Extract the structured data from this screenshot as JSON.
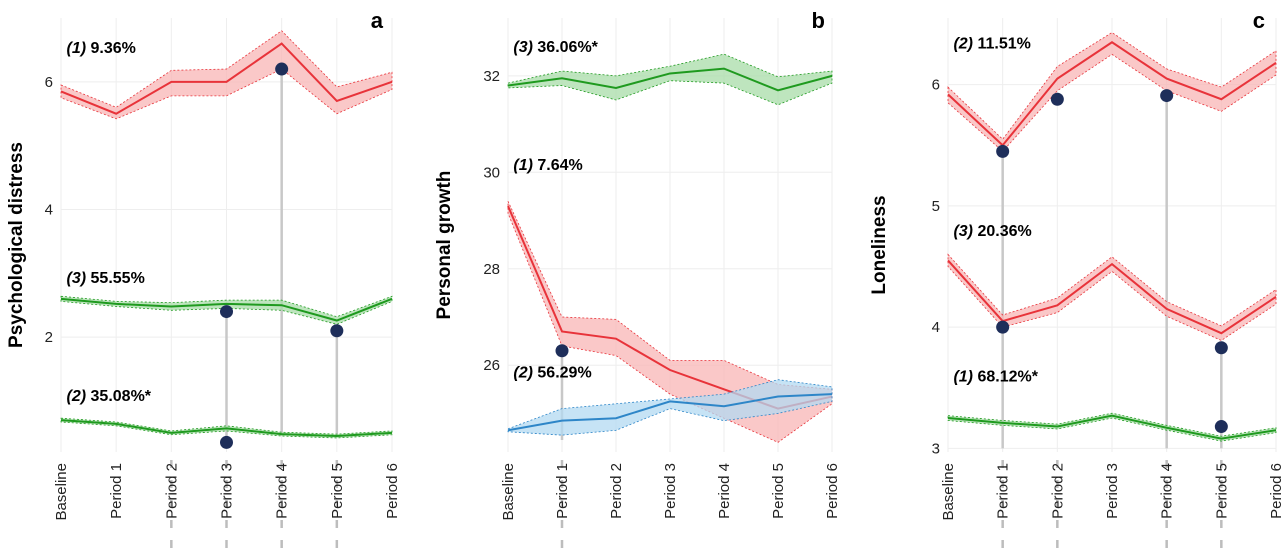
{
  "chart_data": [
    {
      "type": "line",
      "panel_letter": "a",
      "ylabel": "Psychological distress",
      "categories": [
        "Baseline",
        "Period 1",
        "Period 2",
        "Period 3",
        "Period 4",
        "Period 5",
        "Period 6"
      ],
      "ylim": [
        0.2,
        7.0
      ],
      "yticks": [
        2,
        4,
        6
      ],
      "grid": true,
      "series": [
        {
          "color": "#e8333a",
          "band": "#f8b5b5",
          "values": [
            5.85,
            5.5,
            6.0,
            6.0,
            6.6,
            5.7,
            6.0
          ],
          "lower": [
            5.75,
            5.42,
            5.78,
            5.78,
            6.2,
            5.5,
            5.88
          ],
          "upper": [
            5.95,
            5.6,
            6.18,
            6.2,
            6.8,
            5.92,
            6.15
          ]
        },
        {
          "color": "#1f9a1f",
          "band": "#a8dca8",
          "values": [
            2.6,
            2.52,
            2.48,
            2.52,
            2.5,
            2.26,
            2.6
          ],
          "lower": [
            2.56,
            2.48,
            2.42,
            2.45,
            2.42,
            2.2,
            2.56
          ],
          "upper": [
            2.64,
            2.56,
            2.54,
            2.58,
            2.58,
            2.32,
            2.64
          ]
        },
        {
          "color": "#1f9a1f",
          "band": "#a8dca8",
          "values": [
            0.7,
            0.64,
            0.5,
            0.57,
            0.48,
            0.45,
            0.5
          ],
          "lower": [
            0.67,
            0.61,
            0.47,
            0.53,
            0.45,
            0.42,
            0.47
          ],
          "upper": [
            0.73,
            0.67,
            0.53,
            0.61,
            0.51,
            0.48,
            0.53
          ]
        }
      ],
      "annotations": [
        {
          "num": "(1)",
          "text": " 9.36%",
          "x": 0.1,
          "y": 6.45
        },
        {
          "num": "(3)",
          "text": " 55.55%",
          "x": 0.1,
          "y": 2.85
        },
        {
          "num": "(2)",
          "text": " 35.08%*",
          "x": 0.1,
          "y": 1.0
        }
      ],
      "points": [
        {
          "x": 3,
          "y": 2.4
        },
        {
          "x": 3,
          "y": 0.35
        },
        {
          "x": 4,
          "y": 6.2
        },
        {
          "x": 5,
          "y": 2.1
        }
      ],
      "connectors": [
        {
          "x": 3,
          "y1": 0.35,
          "y2": 2.4
        },
        {
          "x": 4,
          "y1": 0.45,
          "y2": 6.2
        },
        {
          "x": 5,
          "y1": 0.45,
          "y2": 2.1
        }
      ],
      "dashed_below_axis": [
        2,
        3,
        4,
        5
      ]
    },
    {
      "type": "line",
      "panel_letter": "b",
      "ylabel": "Personal growth",
      "categories": [
        "Baseline",
        "Period 1",
        "Period 2",
        "Period 3",
        "Period 4",
        "Period 5",
        "Period 6"
      ],
      "ylim": [
        24.2,
        33.2
      ],
      "yticks": [
        26,
        28,
        30,
        32
      ],
      "grid": true,
      "series": [
        {
          "color": "#1f9a1f",
          "band": "#a8dca8",
          "values": [
            31.8,
            31.95,
            31.75,
            32.05,
            32.15,
            31.7,
            32.0
          ],
          "lower": [
            31.75,
            31.8,
            31.5,
            31.9,
            31.85,
            31.4,
            31.85
          ],
          "upper": [
            31.85,
            32.1,
            32.0,
            32.2,
            32.45,
            31.98,
            32.1
          ]
        },
        {
          "color": "#e8333a",
          "band": "#f8b5b5",
          "values": [
            29.3,
            26.7,
            26.55,
            25.9,
            25.5,
            25.1,
            25.35
          ],
          "lower": [
            29.15,
            26.4,
            26.2,
            25.4,
            24.9,
            24.4,
            25.2
          ],
          "upper": [
            29.4,
            27.0,
            26.95,
            26.1,
            26.1,
            25.6,
            25.5
          ]
        },
        {
          "color": "#2e86c8",
          "band": "#b3d9f2",
          "values": [
            24.65,
            24.85,
            24.9,
            25.25,
            25.15,
            25.35,
            25.4
          ],
          "lower": [
            24.62,
            24.55,
            24.65,
            25.1,
            24.85,
            25.0,
            25.25
          ],
          "upper": [
            24.68,
            25.1,
            25.2,
            25.3,
            25.4,
            25.7,
            25.55
          ]
        }
      ],
      "annotations": [
        {
          "num": "(3)",
          "text": " 36.06%*",
          "x": 0.1,
          "y": 32.5
        },
        {
          "num": "(1)",
          "text": " 7.64%",
          "x": 0.1,
          "y": 30.05
        },
        {
          "num": "(2)",
          "text": " 56.29%",
          "x": 0.1,
          "y": 25.75
        }
      ],
      "points": [
        {
          "x": 1,
          "y": 26.3
        }
      ],
      "connectors": [
        {
          "x": 1,
          "y1": 24.45,
          "y2": 26.3
        }
      ],
      "dashed_below_axis": [
        1
      ]
    },
    {
      "type": "line",
      "panel_letter": "c",
      "ylabel": "Loneliness",
      "categories": [
        "Baseline",
        "Period 1",
        "Period 2",
        "Period 3",
        "Period 4",
        "Period 5",
        "Period 6"
      ],
      "ylim": [
        2.97,
        6.55
      ],
      "yticks": [
        3,
        4,
        5,
        6
      ],
      "grid": true,
      "series": [
        {
          "color": "#e8333a",
          "band": "#f8b5b5",
          "values": [
            5.92,
            5.5,
            6.05,
            6.35,
            6.05,
            5.88,
            6.18
          ],
          "lower": [
            5.85,
            5.45,
            5.95,
            6.25,
            5.95,
            5.78,
            6.08
          ],
          "upper": [
            5.98,
            5.55,
            6.15,
            6.43,
            6.13,
            5.98,
            6.28
          ]
        },
        {
          "color": "#e8333a",
          "band": "#f8b5b5",
          "values": [
            4.55,
            4.05,
            4.18,
            4.52,
            4.15,
            3.95,
            4.25
          ],
          "lower": [
            4.5,
            4.0,
            4.12,
            4.46,
            4.09,
            3.89,
            4.19
          ],
          "upper": [
            4.6,
            4.1,
            4.24,
            4.58,
            4.21,
            4.01,
            4.31
          ]
        },
        {
          "color": "#1f9a1f",
          "band": "#a8dca8",
          "values": [
            3.25,
            3.21,
            3.18,
            3.27,
            3.17,
            3.08,
            3.15
          ],
          "lower": [
            3.23,
            3.19,
            3.16,
            3.25,
            3.15,
            3.06,
            3.13
          ],
          "upper": [
            3.27,
            3.23,
            3.2,
            3.29,
            3.19,
            3.1,
            3.17
          ]
        }
      ],
      "annotations": [
        {
          "num": "(2)",
          "text": " 11.51%",
          "x": 0.1,
          "y": 6.3
        },
        {
          "num": "(3)",
          "text": " 20.36%",
          "x": 0.1,
          "y": 4.75
        },
        {
          "num": "(1)",
          "text": " 68.12%*",
          "x": 0.1,
          "y": 3.55
        }
      ],
      "points": [
        {
          "x": 1,
          "y": 5.45
        },
        {
          "x": 1,
          "y": 4.0
        },
        {
          "x": 2,
          "y": 5.88
        },
        {
          "x": 4,
          "y": 5.91
        },
        {
          "x": 5,
          "y": 3.83
        },
        {
          "x": 5,
          "y": 3.18
        }
      ],
      "connectors": [
        {
          "x": 1,
          "y1": 3.0,
          "y2": 5.45
        },
        {
          "x": 4,
          "y1": 3.0,
          "y2": 5.91
        },
        {
          "x": 5,
          "y1": 3.0,
          "y2": 3.83
        }
      ],
      "dashed_below_axis": [
        1,
        2,
        4,
        5
      ]
    }
  ]
}
